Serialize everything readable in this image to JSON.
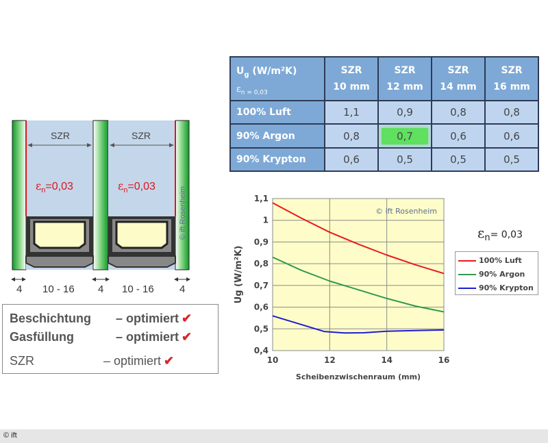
{
  "diagram": {
    "pane_gap_label": "SZR",
    "coating_label_prefix": "ε",
    "coating_label_sub": "n",
    "coating_label_value": "=0,03",
    "copyright_vertical": "© ift Rosenheim",
    "dimensions": [
      "4",
      "10 - 16",
      "4",
      "10 - 16",
      "4"
    ]
  },
  "summary": {
    "rows": [
      {
        "label": "Beschichtung",
        "value": "– optimiert",
        "bold": true
      },
      {
        "label": "Gasfüllung",
        "value": "– optimiert",
        "bold": true
      },
      {
        "label": "SZR",
        "value": "– optimiert",
        "bold": false
      }
    ],
    "check_color": "#d8262b"
  },
  "table": {
    "header_main": "U",
    "header_main_sub": "g",
    "header_main_rest": " (W/m²K)",
    "header_eps": "ε",
    "header_eps_sub": "n = 0,03",
    "columns": [
      {
        "top": "SZR",
        "bottom": "10 mm"
      },
      {
        "top": "SZR",
        "bottom": "12 mm"
      },
      {
        "top": "SZR",
        "bottom": "14 mm"
      },
      {
        "top": "SZR",
        "bottom": "16 mm"
      }
    ],
    "rows": [
      {
        "label": "100% Luft",
        "values": [
          "1,1",
          "0,9",
          "0,8",
          "0,8"
        ]
      },
      {
        "label": "90% Argon",
        "values": [
          "0,8",
          "0,7",
          "0,6",
          "0,6"
        ]
      },
      {
        "label": "90% Krypton",
        "values": [
          "0,6",
          "0,5",
          "0,5",
          "0,5"
        ]
      }
    ],
    "highlight": {
      "row": 1,
      "col": 1,
      "color": "#5fe05f"
    }
  },
  "chart_data": {
    "type": "line",
    "title": "",
    "xlabel": "Scheibenzwischenraum (mm)",
    "ylabel": "Ug (W/m²K)",
    "xlim": [
      10,
      16
    ],
    "ylim": [
      0.4,
      1.1
    ],
    "xticks": [
      "10",
      "12",
      "14",
      "16"
    ],
    "yticks": [
      "0,4",
      "0,5",
      "0,6",
      "0,7",
      "0,8",
      "0,9",
      "1",
      "1,1"
    ],
    "watermark": "© ift Rosenheim",
    "grid": true,
    "legend_position": "right",
    "series": [
      {
        "name": "100% Luft",
        "color": "#e8181c",
        "x": [
          10,
          11,
          12,
          13,
          14,
          15,
          16
        ],
        "y": [
          1.08,
          1.01,
          0.945,
          0.89,
          0.84,
          0.795,
          0.755
        ]
      },
      {
        "name": "90% Argon",
        "color": "#2e9a4e",
        "x": [
          10,
          11,
          12,
          13,
          14,
          15,
          16
        ],
        "y": [
          0.83,
          0.77,
          0.72,
          0.68,
          0.64,
          0.605,
          0.578
        ]
      },
      {
        "name": "90% Krypton",
        "color": "#1c1ccf",
        "x": [
          10,
          11,
          11.8,
          12.5,
          13.2,
          14,
          15,
          16
        ],
        "y": [
          0.56,
          0.52,
          0.488,
          0.481,
          0.482,
          0.489,
          0.492,
          0.495
        ]
      }
    ]
  },
  "note": {
    "prefix": "ε",
    "sub": "n",
    "value": "= 0,03"
  },
  "footer": {
    "text": "© ift"
  }
}
